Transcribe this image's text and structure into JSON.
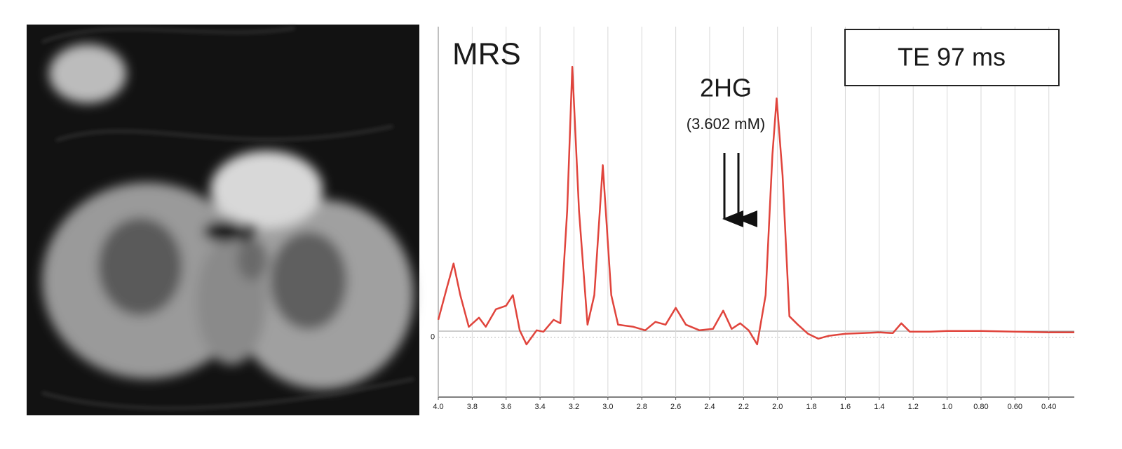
{
  "chart_data": {
    "type": "line",
    "title": "MRS",
    "annotations": [
      "2HG",
      "(3.602 mM)",
      "TE 97 ms"
    ],
    "x": [
      4.0,
      3.95,
      3.91,
      3.87,
      3.82,
      3.76,
      3.72,
      3.66,
      3.6,
      3.56,
      3.52,
      3.48,
      3.42,
      3.38,
      3.32,
      3.28,
      3.24,
      3.21,
      3.17,
      3.12,
      3.08,
      3.03,
      2.98,
      2.94,
      2.85,
      2.78,
      2.72,
      2.66,
      2.6,
      2.54,
      2.46,
      2.38,
      2.32,
      2.27,
      2.22,
      2.17,
      2.12,
      2.07,
      2.03,
      2.005,
      1.97,
      1.93,
      1.88,
      1.82,
      1.76,
      1.7,
      1.6,
      1.5,
      1.4,
      1.32,
      1.27,
      1.22,
      1.1,
      1.0,
      0.8,
      0.6,
      0.4,
      0.25
    ],
    "values": [
      0.25,
      0.7,
      1.05,
      0.6,
      0.15,
      0.28,
      0.15,
      0.4,
      0.45,
      0.6,
      0.1,
      -0.1,
      0.1,
      0.08,
      0.25,
      0.2,
      1.8,
      3.85,
      1.8,
      0.18,
      0.6,
      2.45,
      0.6,
      0.18,
      0.15,
      0.1,
      0.22,
      0.18,
      0.42,
      0.18,
      0.1,
      0.12,
      0.38,
      0.12,
      0.2,
      0.1,
      -0.1,
      0.6,
      2.6,
      3.4,
      2.3,
      0.3,
      0.18,
      0.05,
      -0.02,
      0.02,
      0.05,
      0.06,
      0.07,
      0.06,
      0.2,
      0.08,
      0.08,
      0.09,
      0.09,
      0.08,
      0.07,
      0.07
    ],
    "color": "#e0443c",
    "xlim": [
      4.0,
      0.25
    ],
    "xticks": [
      {
        "value": 4.0,
        "label": "4.0"
      },
      3.8,
      3.6,
      3.4,
      3.2,
      {
        "value": 3.0,
        "label": "3.0"
      },
      2.8,
      2.6,
      2.4,
      2.2,
      {
        "value": 2.0,
        "label": "2.0"
      },
      1.8,
      1.6,
      1.4,
      1.2,
      {
        "value": 1.0,
        "label": "1.0"
      },
      {
        "value": 0.8,
        "label": "0.80"
      },
      {
        "value": 0.6,
        "label": "0.60"
      },
      {
        "value": 0.4,
        "label": "0.40"
      }
    ],
    "ylim": [
      -0.85,
      4.42
    ],
    "yticks": [
      0
    ],
    "grid": true
  }
}
